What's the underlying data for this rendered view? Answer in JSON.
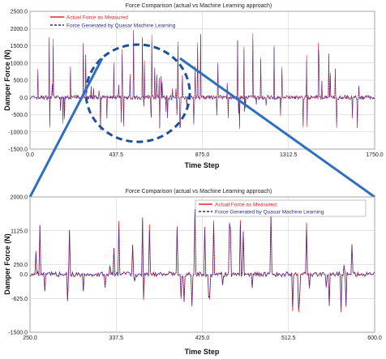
{
  "colors": {
    "actual": "#e8232a",
    "predicted": "#2b2b9e",
    "zoom": "#2f6fc0"
  },
  "chart_data": [
    {
      "type": "line",
      "title": "Force Comparison (actual vs Machine Learning approach)",
      "xlabel": "Time Step",
      "ylabel": "Damper Force (N)",
      "xlim": [
        0,
        1750
      ],
      "ylim": [
        -1500,
        2500
      ],
      "xticks": [
        "0.0",
        "437.5",
        "875.0",
        "1312.5",
        "1750.0"
      ],
      "yticks": [
        "2500.0",
        "2000.0",
        "1500.0",
        "1000.0",
        "500.0",
        "0.0",
        "-500.0",
        "-1000.0",
        "-1500.0"
      ],
      "grid": true,
      "legend": "top-left",
      "series": [
        {
          "name": "Actual Force as Measured"
        },
        {
          "name": "Force Generated by Quasar Machine Learning"
        }
      ]
    },
    {
      "type": "line",
      "title": "Force Comparison (actual vs Machine Learning approach)",
      "xlabel": "Time Step",
      "ylabel": "Damper Force (N)",
      "xlim": [
        250,
        600
      ],
      "ylim": [
        -1500,
        2000
      ],
      "xticks": [
        "250.0",
        "337.5",
        "425.0",
        "512.5",
        "600.0"
      ],
      "yticks": [
        "2000.0",
        "1125.0",
        "250.0",
        "0.0",
        "-625.0",
        "-1500.0"
      ],
      "ytick_values": [
        2000,
        1125,
        250,
        0,
        -625,
        -1500
      ],
      "grid": true,
      "legend": "top-right",
      "series": [
        {
          "name": "Actual Force as Measured"
        },
        {
          "name": "Force Generated by Quasar Machine Learning"
        }
      ]
    }
  ]
}
